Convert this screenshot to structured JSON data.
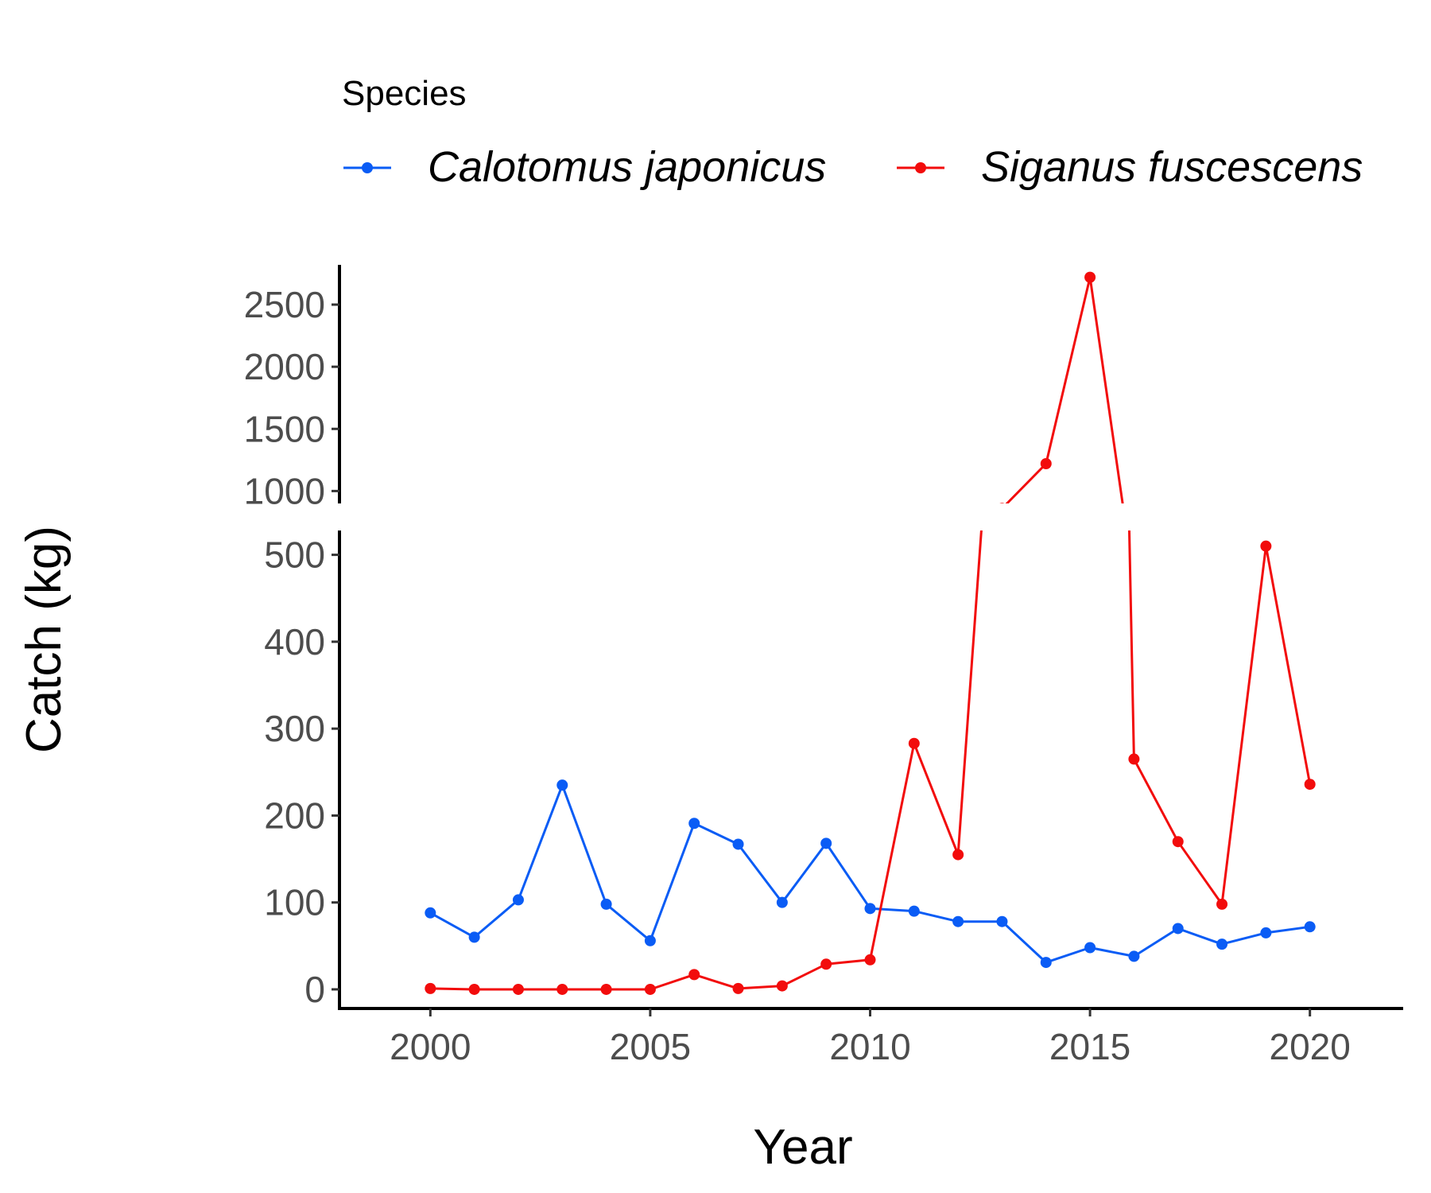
{
  "chart_data": {
    "type": "line",
    "xlabel": "Year",
    "ylabel": "Catch (kg)",
    "x": [
      2000,
      2001,
      2002,
      2003,
      2004,
      2005,
      2006,
      2007,
      2008,
      2009,
      2010,
      2011,
      2012,
      2013,
      2014,
      2015,
      2016,
      2017,
      2018,
      2019,
      2020
    ],
    "x_ticks": [
      "2000",
      "2005",
      "2010",
      "2015",
      "2020"
    ],
    "xlim": [
      1999,
      2021
    ],
    "y_axis_break": true,
    "ylim_lower": [
      -22,
      528
    ],
    "ylim_upper": [
      900,
      2820
    ],
    "y_ticks_lower": [
      "0",
      "100",
      "200",
      "300",
      "400",
      "500"
    ],
    "y_ticks_upper": [
      "1000",
      "1500",
      "2000",
      "2500"
    ],
    "legend": {
      "title": "Species",
      "placement": "top"
    },
    "series": [
      {
        "name": "Calotomus japonicus",
        "color": "#0a5cf5",
        "values": [
          88,
          60,
          103,
          235,
          98,
          56,
          191,
          167,
          100,
          168,
          93,
          90,
          78,
          78,
          31,
          48,
          38,
          70,
          52,
          65,
          72
        ]
      },
      {
        "name": "Siganus fuscescens",
        "color": "#f20c0c",
        "values": [
          1,
          0,
          0,
          0,
          0,
          0,
          17,
          1,
          4,
          29,
          34,
          283,
          155,
          860,
          1220,
          2720,
          265,
          170,
          98,
          510,
          236
        ]
      }
    ]
  }
}
